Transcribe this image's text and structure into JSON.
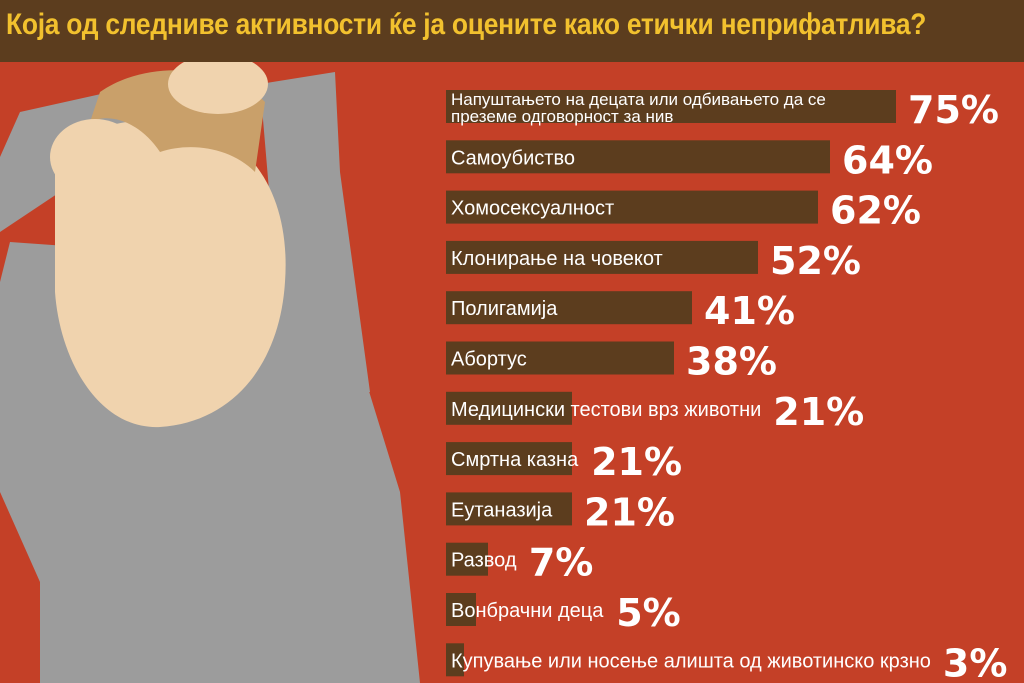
{
  "header": {
    "title": "Која од следниве активности ќе ја оцените како етички неприфатлива?",
    "bg_color": "#5c3d1e",
    "title_color": "#f2c12e"
  },
  "background_color": "#c44027",
  "bar_color": "#5c3d1e",
  "illustration": {
    "icon": "stressed-person-icon"
  },
  "chart_data": {
    "type": "bar",
    "orientation": "horizontal",
    "title": "Која од следниве активности ќе ја оцените како етички неприфатлива?",
    "unit": "%",
    "categories": [
      "Напуштањето на децата или одбивањето да се преземе одговорност за нив",
      "Самоубиство",
      "Хомосексуалност",
      "Клонирање на човекот",
      "Полигамија",
      "Абортус",
      "Медицински тестови врз животни",
      "Смртна казна",
      "Еутаназија",
      "Развод",
      "Вонбрачни деца",
      "Купување или носење алишта од животинско крзно"
    ],
    "values": [
      75,
      64,
      62,
      52,
      41,
      38,
      21,
      21,
      21,
      7,
      5,
      3
    ],
    "value_labels": [
      "75%",
      "64%",
      "62%",
      "52%",
      "41%",
      "38%",
      "21%",
      "21%",
      "21%",
      "7%",
      "5%",
      "3%"
    ],
    "label_lines": [
      [
        "Напуштањето на децата или одбивањето да се",
        "преземе одговорност за нив"
      ],
      null,
      null,
      null,
      null,
      null,
      null,
      null,
      null,
      null,
      null,
      null
    ],
    "xlim": [
      0,
      100
    ],
    "grid": false,
    "legend": "none"
  }
}
